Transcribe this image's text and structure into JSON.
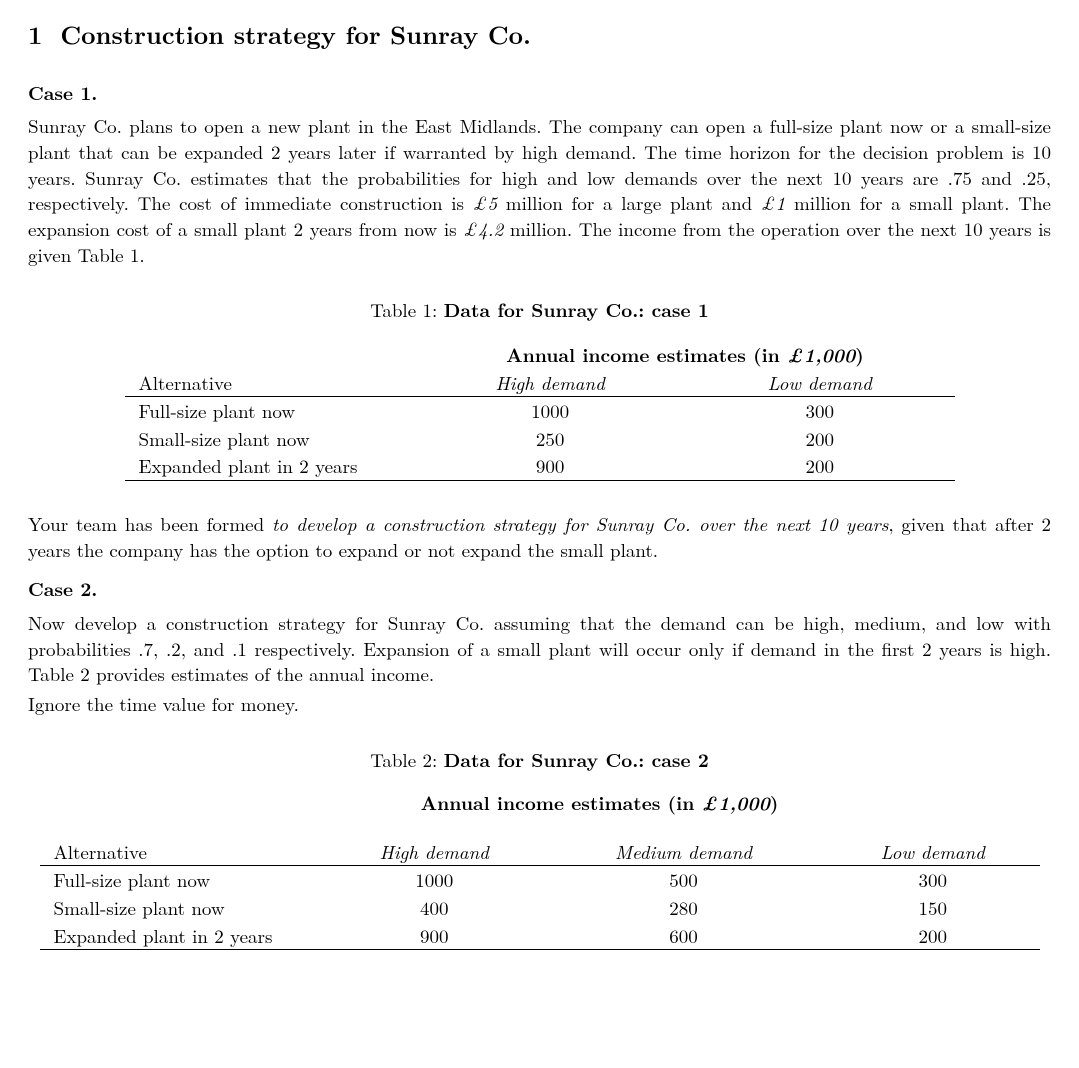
{
  "section": {
    "number": "1",
    "title": "Construction strategy for Sunray Co."
  },
  "case1": {
    "label": "Case 1.",
    "para_a": "Sunray Co. plans to open a new plant in the East Midlands. The company can open a full-size plant now or a small-size plant that can be expanded 2 years later if warranted by high demand. The time horizon for the decision problem is 10 years. Sunray Co. estimates that the probabilities for high and low demands over the next 10 years are .75 and .25, respectively. The cost of immediate construction is ",
    "cost1": "£5",
    "para_b": " million for a large plant and ",
    "cost2": "£1",
    "para_c": " million for a small plant. The expansion cost of a small plant 2 years from now is ",
    "cost3": "£4.2",
    "para_d": " million. The income from the operation over the next 10 years is given Table 1."
  },
  "table1": {
    "caption_prefix": "Table 1: ",
    "caption_bold": "Data for Sunray Co.: case 1",
    "span_a": "Annual income estimates (in ",
    "span_amt": "£1,000",
    "span_b": ")",
    "headers": {
      "alt": "Alternative",
      "high": "High demand",
      "low": "Low demand"
    },
    "rows": [
      {
        "alt": "Full-size plant now",
        "high": "1000",
        "low": "300"
      },
      {
        "alt": "Small-size plant now",
        "high": "250",
        "low": "200"
      },
      {
        "alt": "Expanded plant in 2 years",
        "high": "900",
        "low": "200"
      }
    ]
  },
  "mid": {
    "a": "Your team has been formed ",
    "italic": "to develop a construction strategy for Sunray Co. over the next 10 years",
    "b": ", given that after 2 years the company has the option to expand or not expand the small plant."
  },
  "case2": {
    "label": "Case 2.",
    "para": "Now develop a construction strategy for Sunray Co. assuming that the demand can be high, medium, and low with probabilities .7, .2, and .1 respectively. Expansion of a small plant will occur only if demand in the first 2 years is high. Table 2 provides estimates of the annual income.",
    "ignore": "Ignore the time value for money."
  },
  "table2": {
    "caption_prefix": "Table 2: ",
    "caption_bold": "Data for Sunray Co.: case 2",
    "span_a": "Annual income estimates (in ",
    "span_amt": "£1,000",
    "span_b": ")",
    "headers": {
      "alt": "Alternative",
      "high": "High demand",
      "med": "Medium demand",
      "low": "Low demand"
    },
    "rows": [
      {
        "alt": "Full-size plant now",
        "high": "1000",
        "med": "500",
        "low": "300"
      },
      {
        "alt": "Small-size plant now",
        "high": "400",
        "med": "280",
        "low": "150"
      },
      {
        "alt": "Expanded plant in 2 years",
        "high": "900",
        "med": "600",
        "low": "200"
      }
    ]
  }
}
